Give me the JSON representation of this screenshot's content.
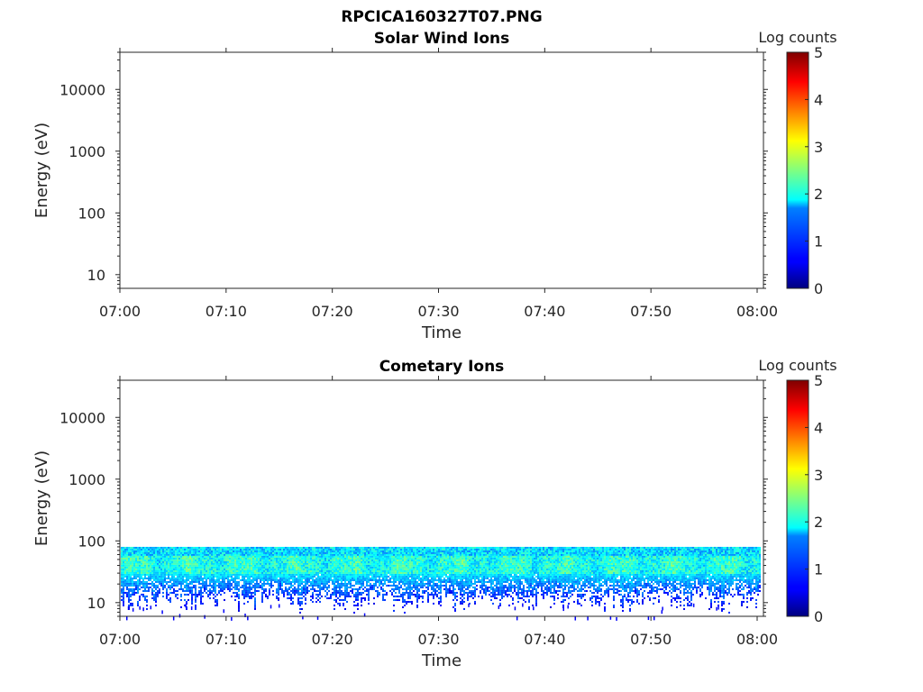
{
  "figure_title": "RPCICA160327T07.PNG",
  "chart_data": [
    {
      "type": "heatmap",
      "title": "Solar Wind Ions",
      "xlabel": "Time",
      "ylabel": "Energy (eV)",
      "x_ticks": [
        "07:00",
        "07:10",
        "07:20",
        "07:30",
        "07:40",
        "07:50",
        "08:00"
      ],
      "xlim": [
        "07:00",
        "08:00"
      ],
      "y_scale": "log",
      "y_ticks": [
        "10",
        "100",
        "1000",
        "10000"
      ],
      "ylim": [
        6,
        40000
      ],
      "colorbar": {
        "label": "Log counts",
        "range": [
          0,
          5
        ],
        "ticks": [
          "0",
          "1",
          "2",
          "3",
          "4",
          "5"
        ],
        "colormap": "jet"
      },
      "data_description": "empty",
      "band": null
    },
    {
      "type": "heatmap",
      "title": "Cometary Ions",
      "xlabel": "Time",
      "ylabel": "Energy (eV)",
      "x_ticks": [
        "07:00",
        "07:10",
        "07:20",
        "07:30",
        "07:40",
        "07:50",
        "08:00"
      ],
      "xlim": [
        "07:00",
        "08:00"
      ],
      "y_scale": "log",
      "y_ticks": [
        "10",
        "100",
        "1000",
        "10000"
      ],
      "ylim": [
        6,
        40000
      ],
      "colorbar": {
        "label": "Log counts",
        "range": [
          0,
          5
        ],
        "ticks": [
          "0",
          "1",
          "2",
          "3",
          "4",
          "5"
        ],
        "colormap": "jet"
      },
      "band": {
        "energy_max_eV": 80,
        "energy_peak_eV": [
          30,
          60
        ],
        "energy_min_eV": 12,
        "peak_log_counts": 2.3
      }
    }
  ]
}
